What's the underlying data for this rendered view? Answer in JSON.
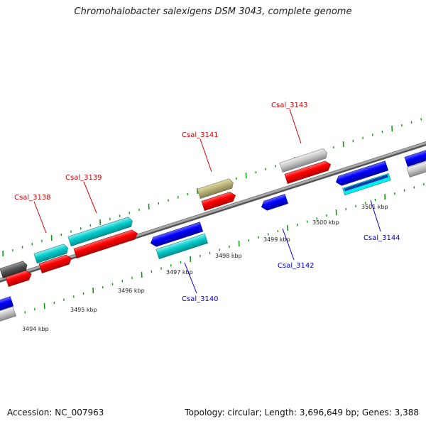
{
  "title": "Chromohalobacter salexigens DSM 3043, complete genome",
  "footer": {
    "accession": "Accession: NC_007963",
    "summary": "Topology: circular; Length: 3,696,649 bp; Genes: 3,388"
  },
  "colors": {
    "forward_cds": "#ff0000",
    "reverse_cds": "#0000ff",
    "forward_gene": "#00cccc",
    "other_gene": "#c8c8c8",
    "pseudo_gene": "#bbb37a",
    "dark_gene": "#555555",
    "label_forward": "#cc0000",
    "label_reverse": "#0000cc",
    "tick_color": "#119911",
    "backbone": "#888888"
  },
  "scale": {
    "ticks": [
      {
        "label": "3494 kbp"
      },
      {
        "label": "3495 kbp"
      },
      {
        "label": "3496 kbp"
      },
      {
        "label": "3497 kbp"
      },
      {
        "label": "3498 kbp"
      },
      {
        "label": "3499 kbp"
      },
      {
        "label": "3500 kbp"
      },
      {
        "label": "3501 kbp"
      }
    ]
  },
  "gene_labels": [
    {
      "text": "Csal_3138",
      "strand": "forward"
    },
    {
      "text": "Csal_3139",
      "strand": "forward"
    },
    {
      "text": "Csal_3141",
      "strand": "forward"
    },
    {
      "text": "Csal_3143",
      "strand": "forward"
    },
    {
      "text": "Csal_3140",
      "strand": "reverse"
    },
    {
      "text": "Csal_3142",
      "strand": "reverse"
    },
    {
      "text": "Csal_3144",
      "strand": "reverse"
    }
  ]
}
